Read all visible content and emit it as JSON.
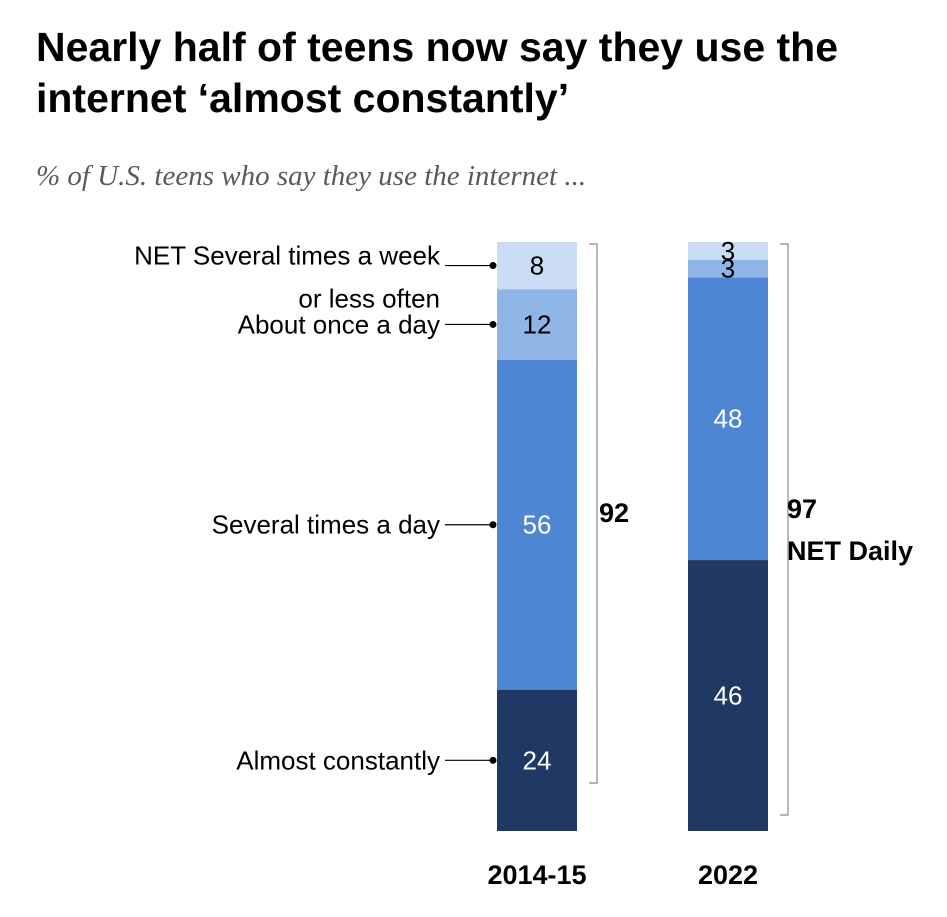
{
  "title": "Nearly half of teens now say they use the internet ‘almost constantly’",
  "subtitle": "% of U.S. teens who say they use the internet ...",
  "chart_data": {
    "type": "bar",
    "stacked": true,
    "orientation": "vertical",
    "categories": [
      "2014-15",
      "2022"
    ],
    "series": [
      {
        "name": "Almost constantly",
        "values": [
          24,
          46
        ],
        "color": "#1f3864",
        "label_color": "#ffffff"
      },
      {
        "name": "Several times a day",
        "values": [
          56,
          48
        ],
        "color": "#4f86d4",
        "label_color": "#ffffff"
      },
      {
        "name": "About once a day",
        "values": [
          12,
          3
        ],
        "color": "#8fb4e6",
        "label_color": "#000000"
      },
      {
        "name": "NET Several times a week or less often",
        "values": [
          8,
          3
        ],
        "color": "#c9dcf3",
        "label_color": "#000000"
      }
    ],
    "net_daily": {
      "values": [
        "92",
        "97"
      ],
      "label": "NET Daily"
    },
    "category_labels": [
      [
        "Almost constantly"
      ],
      [
        "Several times a day"
      ],
      [
        "About once a day"
      ],
      [
        "NET Several times a week",
        "or less often"
      ]
    ],
    "ylim": [
      0,
      100
    ],
    "grid": false,
    "legend": "left-side labels"
  }
}
